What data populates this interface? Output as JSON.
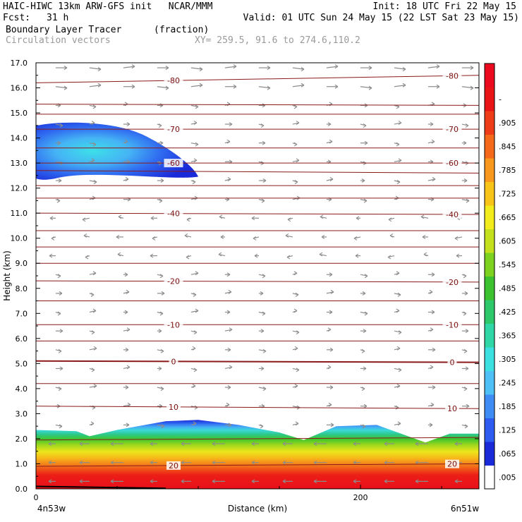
{
  "header": {
    "model_line": "HAIC-HIWC 13km ARW-GFS init   NCAR/MMM",
    "init": "Init: 18 UTC Fri 22 May 15",
    "fcst_label": "Fcst:",
    "fcst_value": "31 h",
    "valid": "Valid: 01 UTC Sun 24 May 15 (22 LST Sat 23 May 15)",
    "field": "Boundary Layer Tracer",
    "field_unit": "(fraction)",
    "vectors": "Circulation vectors",
    "xy": "XY= 259.5, 91.6 to 274.6,110.2"
  },
  "chart_data": {
    "type": "heatmap",
    "ylabel": "Height (km)",
    "xlabel": "Distance (km)",
    "ylim": [
      0,
      17
    ],
    "xlim": [
      0,
      273
    ],
    "y_ticks": [
      "0.0",
      "1.0",
      "2.0",
      "3.0",
      "4.0",
      "5.0",
      "6.0",
      "7.0",
      "8.0",
      "9.0",
      "10.0",
      "11.0",
      "12.0",
      "13.0",
      "14.0",
      "15.0",
      "16.0",
      "17.0"
    ],
    "x_ticks": [
      {
        "value": 0,
        "label": "0"
      },
      {
        "value": 200,
        "label": "200"
      }
    ],
    "left_endpoint": "4n53w",
    "right_endpoint": "6n51w",
    "colorbar": {
      "labels": [
        ".005",
        ".065",
        ".125",
        ".185",
        ".245",
        ".305",
        ".365",
        ".425",
        ".485",
        ".545",
        ".605",
        ".665",
        ".725",
        ".785",
        ".845",
        ".905",
        "-"
      ],
      "colors": [
        "#ffffff",
        "#1a2ad8",
        "#2e5cf0",
        "#3f8cf5",
        "#4ec0f5",
        "#3ce0e0",
        "#2fd6a6",
        "#2cc86a",
        "#3cc22e",
        "#7cd21e",
        "#c4e01c",
        "#f2ec1c",
        "#f8c418",
        "#f8981c",
        "#f46a1a",
        "#ee3c18",
        "#e81416",
        "#ec0a1e"
      ]
    },
    "isotherms": [
      {
        "label": "20",
        "height": [
          0.9,
          1.0
        ]
      },
      {
        "label": "10",
        "height": [
          3.3,
          3.2
        ]
      },
      {
        "label": "0",
        "height": [
          5.1,
          5.05
        ]
      },
      {
        "label": "-10",
        "height": [
          6.55,
          6.55
        ]
      },
      {
        "label": "-20",
        "height": [
          8.3,
          8.25
        ]
      },
      {
        "label": "-40",
        "height": [
          11.0,
          10.95
        ]
      },
      {
        "label": "-60",
        "height": [
          13.0,
          13.0
        ]
      },
      {
        "label": "-70",
        "height": [
          14.35,
          14.35
        ]
      },
      {
        "label": "-80",
        "height": [
          16.2,
          16.5
        ]
      }
    ],
    "upper_plume": {
      "x_range": [
        0,
        100
      ],
      "height_range": [
        12.4,
        14.6
      ],
      "peak_value": 0.305
    },
    "boundary_layer_top_km": [
      {
        "x": 0,
        "y": 2.35
      },
      {
        "x": 25,
        "y": 2.3
      },
      {
        "x": 33,
        "y": 2.1
      },
      {
        "x": 50,
        "y": 2.35
      },
      {
        "x": 80,
        "y": 2.7
      },
      {
        "x": 100,
        "y": 2.75
      },
      {
        "x": 125,
        "y": 2.55
      },
      {
        "x": 150,
        "y": 2.25
      },
      {
        "x": 165,
        "y": 1.95
      },
      {
        "x": 185,
        "y": 2.5
      },
      {
        "x": 210,
        "y": 2.55
      },
      {
        "x": 240,
        "y": 1.85
      },
      {
        "x": 255,
        "y": 2.2
      },
      {
        "x": 273,
        "y": 2.2
      }
    ]
  }
}
